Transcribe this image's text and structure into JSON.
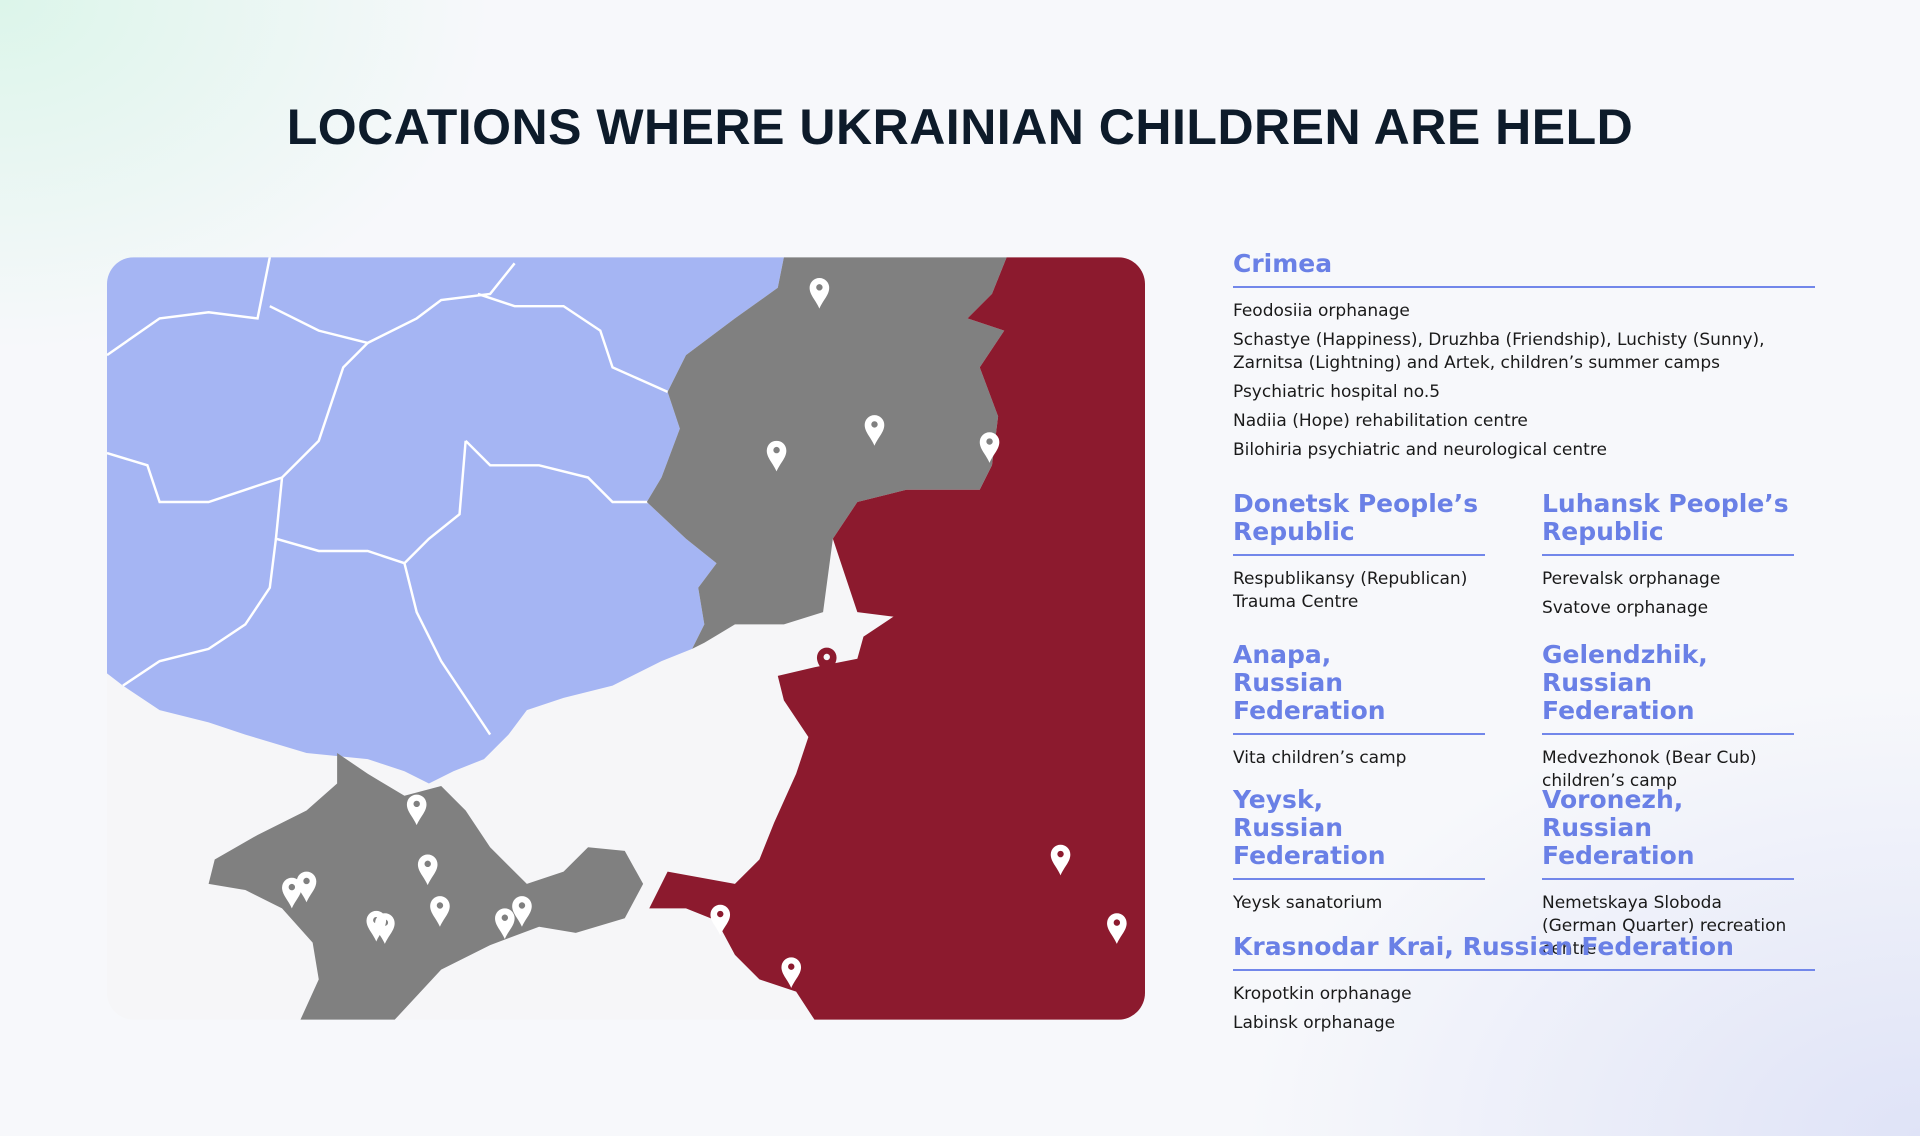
{
  "title": "LOCATIONS WHERE UKRAINIAN CHILDREN ARE HELD",
  "sections": [
    {
      "heading": "Crimea",
      "items": [
        "Feodosiia orphanage",
        "Schastye (Happiness), Druzhba (Friendship), Luchisty (Sunny), Zarnitsa (Lightning) and Artek, children’s summer camps",
        "Psychiatric hospital no.5",
        "Nadiia (Hope) rehabilitation centre",
        "Bilohiria psychiatric and neurological centre"
      ]
    },
    {
      "heading": "Donetsk People’s Republic",
      "items": [
        "Respublikansy (Republican) Trauma Centre"
      ]
    },
    {
      "heading": "Luhansk People’s Republic",
      "items": [
        "Perevalsk orphanage",
        "Svatove orphanage"
      ]
    },
    {
      "heading": "Anapa,\nRussian Federation",
      "items": [
        "Vita children’s camp"
      ]
    },
    {
      "heading": "Gelendzhik,\nRussian Federation",
      "items": [
        "Medvezhonok (Bear Cub) children’s camp"
      ]
    },
    {
      "heading": "Yeysk,\nRussian Federation",
      "items": [
        "Yeysk sanatorium"
      ]
    },
    {
      "heading": "Voronezh,\nRussian Federation",
      "items": [
        "Nemetskaya Sloboda (German Quarter) recreation centre"
      ]
    },
    {
      "heading": "Krasnodar Krai, Russian Federation",
      "items": [
        "Kropotkin orphanage",
        "Labinsk orphanage"
      ]
    }
  ]
}
